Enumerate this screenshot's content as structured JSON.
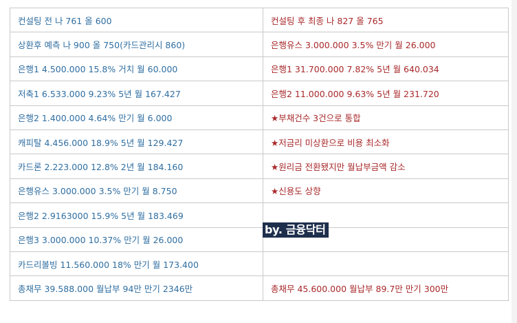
{
  "comparison_table": {
    "rows": [
      {
        "before": "컨설팅 전 나 761 올 600",
        "after": "컨설팅 후 최종 나 827 올 765"
      },
      {
        "before": "상환후 예측 나 900 올 750(카드관리시 860)",
        "after": "은행유스 3.000.000  3.5%  만기 월 26.000"
      },
      {
        "before": "은행1  4.500.000  15.8% 거치 월 60.000",
        "after": "은행1  31.700.000  7.82% 5년 월 640.034"
      },
      {
        "before": "저축1  6.533.000  9.23% 5년 월 167.427",
        "after": "은행2  11.000.000  9.63% 5년 월 231.720"
      },
      {
        "before": "은행2 1.400.000   4.64%  만기 월 6.000",
        "after": "★부채건수 3건으로 통합"
      },
      {
        "before": "캐피탈 4.456.000 18.9%  5년  월 129.427",
        "after": "★저금리 미상환으로 비용 최소화"
      },
      {
        "before": "카드론 2.223.000 12.8%  2년  월 184.160",
        "after": "★원리금 전환됐지만 월납부금액 감소"
      },
      {
        "before": "은행유스 3.000.000  3.5% 만기 월 8.750",
        "after": "★신용도 상향"
      },
      {
        "before": "은행2   2.9163000  15.9% 5년 월 183.469",
        "after": ""
      },
      {
        "before": "은행3   3.000.000   10.37% 만기 월 26.000",
        "after": ""
      },
      {
        "before": "카드리볼빙 11.560.000 18% 만기 월 173.400",
        "after": ""
      },
      {
        "before": "총채무 39.588.000  월납부 94만  만기 2346만",
        "after": "총채무 45.600.000  월납부 89.7만  만기 300만"
      }
    ]
  },
  "watermark": {
    "text": "by. 금융닥터"
  }
}
